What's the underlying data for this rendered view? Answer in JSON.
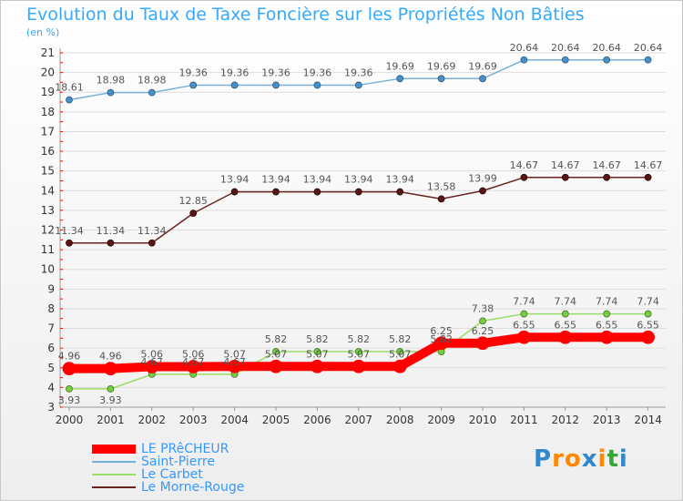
{
  "chart_data": {
    "type": "line",
    "title": "Evolution du Taux de Taxe Foncière sur les Propriétés Non Bâties",
    "subtitle": "(en %)",
    "categories": [
      "2000",
      "2001",
      "2002",
      "2003",
      "2004",
      "2005",
      "2006",
      "2007",
      "2008",
      "2009",
      "2010",
      "2011",
      "2012",
      "2013",
      "2014"
    ],
    "ylim": [
      3,
      21
    ],
    "yticks": [
      3,
      4,
      5,
      6,
      7,
      8,
      9,
      10,
      11,
      12,
      13,
      14,
      15,
      16,
      17,
      18,
      19,
      20,
      21
    ],
    "grid": "horizontal",
    "legend_position": "bottom-left",
    "series": [
      {
        "name": "LE PRêCHEUR",
        "color": "#ff0000",
        "values": [
          4.96,
          4.96,
          5.06,
          5.06,
          5.07,
          5.07,
          5.07,
          5.07,
          5.07,
          6.25,
          6.25,
          6.55,
          6.55,
          6.55,
          6.55
        ],
        "labels": [
          "4.96",
          "4.96",
          "5.06",
          "5.06",
          "5.07",
          "5.07",
          "5.07",
          "5.07",
          "5.07",
          "6.25",
          "6.25",
          "6.55",
          "6.55",
          "6.55",
          "6.55"
        ]
      },
      {
        "name": "Saint-Pierre",
        "color": "#7ab0d8",
        "values": [
          18.61,
          18.98,
          18.98,
          19.36,
          19.36,
          19.36,
          19.36,
          19.36,
          19.69,
          19.69,
          19.69,
          20.64,
          20.64,
          20.64,
          20.64
        ],
        "labels": [
          "18.61",
          "18.98",
          "18.98",
          "19.36",
          "19.36",
          "19.36",
          "19.36",
          "19.36",
          "19.69",
          "19.69",
          "19.69",
          "20.64",
          "20.64",
          "20.64",
          "20.64"
        ]
      },
      {
        "name": "Le Carbet",
        "color": "#99dd66",
        "values": [
          3.93,
          3.93,
          4.67,
          4.67,
          4.67,
          5.82,
          5.82,
          5.82,
          5.82,
          5.82,
          7.38,
          7.74,
          7.74,
          7.74,
          7.74
        ],
        "labels": [
          "3.93",
          "3.93",
          "4.67",
          "4.67",
          "4.67",
          "5.82",
          "5.82",
          "5.82",
          "5.82",
          "5.82",
          "7.38",
          "7.74",
          "7.74",
          "7.74",
          "7.74"
        ]
      },
      {
        "name": "Le Morne-Rouge",
        "color": "#6b2222",
        "values": [
          11.34,
          11.34,
          11.34,
          12.85,
          13.94,
          13.94,
          13.94,
          13.94,
          13.94,
          13.58,
          13.99,
          14.67,
          14.67,
          14.67,
          14.67
        ],
        "labels": [
          "11.34",
          "11.34",
          "11.34",
          "12.85",
          "13.94",
          "13.94",
          "13.94",
          "13.94",
          "13.94",
          "13.58",
          "13.99",
          "14.67",
          "14.67",
          "14.67",
          "14.67"
        ]
      }
    ]
  },
  "logo": {
    "text": "Proxiti",
    "colors": [
      "#3388cc",
      "#ff8800",
      "#ff8800",
      "#3388cc",
      "#ff8800",
      "#33aa33",
      "#3388cc"
    ]
  }
}
